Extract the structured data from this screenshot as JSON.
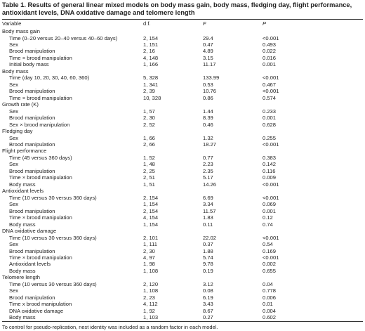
{
  "caption": "Table 1. Results of general linear mixed models on body mass gain, body mass, fledging day, flight performance, antioxidant levels, DNA oxidative damage and telomere length",
  "columns": [
    "Variable",
    "d.f.",
    "F",
    "P"
  ],
  "rows": [
    {
      "type": "section",
      "var": "Body mass gain",
      "df": "",
      "f": "",
      "p": ""
    },
    {
      "type": "item",
      "var": "Time (0–20 versus 20–40 versus 40–60 days)",
      "df": "2, 154",
      "f": "29.4",
      "p": "<0.001"
    },
    {
      "type": "item",
      "var": "Sex",
      "df": "1, 151",
      "f": "0.47",
      "p": "0.493"
    },
    {
      "type": "item",
      "var": "Brood manipulation",
      "df": "2, 16",
      "f": "4.89",
      "p": "0.022"
    },
    {
      "type": "item",
      "var": "Time × brood manipulation",
      "df": "4, 148",
      "f": "3.15",
      "p": "0.016"
    },
    {
      "type": "item",
      "var": "Initial body mass",
      "df": "1, 166",
      "f": "11.17",
      "p": "0.001"
    },
    {
      "type": "section",
      "var": "Body mass",
      "df": "",
      "f": "",
      "p": ""
    },
    {
      "type": "item",
      "var": "Time (day 10, 20, 30, 40, 60, 360)",
      "df": "5, 328",
      "f": "133.99",
      "p": "<0.001"
    },
    {
      "type": "item",
      "var": "Sex",
      "df": "1, 341",
      "f": "0.53",
      "p": "0.467"
    },
    {
      "type": "item",
      "var": "Brood manipulation",
      "df": "2, 39",
      "f": "10.76",
      "p": "<0.001"
    },
    {
      "type": "item",
      "var": "Time × brood manipulation",
      "df": "10, 328",
      "f": "0.86",
      "p": "0.574"
    },
    {
      "type": "section",
      "var": "Growth rate (K)",
      "df": "",
      "f": "",
      "p": ""
    },
    {
      "type": "item",
      "var": "Sex",
      "df": "1, 57",
      "f": "1.44",
      "p": "0.233"
    },
    {
      "type": "item",
      "var": "Brood manipulation",
      "df": "2, 30",
      "f": "8.39",
      "p": "0.001"
    },
    {
      "type": "item",
      "var": "Sex × brood manipulation",
      "df": "2, 52",
      "f": "0.46",
      "p": "0.628"
    },
    {
      "type": "section",
      "var": "Fledging day",
      "df": "",
      "f": "",
      "p": ""
    },
    {
      "type": "item",
      "var": "Sex",
      "df": "1, 66",
      "f": "1.32",
      "p": "0.255"
    },
    {
      "type": "item",
      "var": "Brood manipulation",
      "df": "2, 66",
      "f": "18.27",
      "p": "<0.001"
    },
    {
      "type": "section",
      "var": "Flight performance",
      "df": "",
      "f": "",
      "p": ""
    },
    {
      "type": "item",
      "var": "Time (45 versus 360 days)",
      "df": "1, 52",
      "f": "0.77",
      "p": "0.383"
    },
    {
      "type": "item",
      "var": "Sex",
      "df": "1, 48",
      "f": "2.23",
      "p": "0.142"
    },
    {
      "type": "item",
      "var": "Brood manipulation",
      "df": "2, 25",
      "f": "2.35",
      "p": "0.116"
    },
    {
      "type": "item",
      "var": "Time × brood manipulation",
      "df": "2, 51",
      "f": "5.17",
      "p": "0.009"
    },
    {
      "type": "item",
      "var": "Body mass",
      "df": "1, 51",
      "f": "14.26",
      "p": "<0.001"
    },
    {
      "type": "section",
      "var": "Antioxidant levels",
      "df": "",
      "f": "",
      "p": ""
    },
    {
      "type": "item",
      "var": "Time (10 versus 30 versus 360 days)",
      "df": "2, 154",
      "f": "6.69",
      "p": "<0.001"
    },
    {
      "type": "item",
      "var": "Sex",
      "df": "1, 154",
      "f": "3.34",
      "p": "0.069"
    },
    {
      "type": "item",
      "var": "Brood manipulation",
      "df": "2, 154",
      "f": "11.57",
      "p": "0.001"
    },
    {
      "type": "item",
      "var": "Time × brood manipulation",
      "df": "4, 154",
      "f": "1.83",
      "p": "0.12"
    },
    {
      "type": "item",
      "var": "Body mass",
      "df": "1, 154",
      "f": "0.11",
      "p": "0.74"
    },
    {
      "type": "section",
      "var": "DNA oxidative damage",
      "df": "",
      "f": "",
      "p": ""
    },
    {
      "type": "item",
      "var": "Time (10 versus 30 versus 360 days)",
      "df": "2, 101",
      "f": "22.02",
      "p": "<0.001"
    },
    {
      "type": "item",
      "var": "Sex",
      "df": "1, 111",
      "f": "0.37",
      "p": "0.54"
    },
    {
      "type": "item",
      "var": "Brood manipulation",
      "df": "2, 30",
      "f": "1.88",
      "p": "0.169"
    },
    {
      "type": "item",
      "var": "Time × brood manipulation",
      "df": "4, 97",
      "f": "5.74",
      "p": "<0.001"
    },
    {
      "type": "item",
      "var": "Antioxidant levels",
      "df": "1, 98",
      "f": "9.78",
      "p": "0.002"
    },
    {
      "type": "item",
      "var": "Body mass",
      "df": "1, 108",
      "f": "0.19",
      "p": "0.655"
    },
    {
      "type": "section",
      "var": "Telomere length",
      "df": "",
      "f": "",
      "p": ""
    },
    {
      "type": "item",
      "var": "Time (10 versus 30 versus 360 days)",
      "df": "2, 120",
      "f": "3.12",
      "p": "0.04"
    },
    {
      "type": "item",
      "var": "Sex",
      "df": "1, 108",
      "f": "0.08",
      "p": "0.778"
    },
    {
      "type": "item",
      "var": "Brood manipulation",
      "df": "2, 23",
      "f": "6.19",
      "p": "0.006"
    },
    {
      "type": "item",
      "var": "Time x brood manipulation",
      "df": "4, 112",
      "f": "3.43",
      "p": "0.01"
    },
    {
      "type": "item",
      "var": "DNA oxidative damage",
      "df": "1, 92",
      "f": "8.67",
      "p": "0.004"
    },
    {
      "type": "item",
      "var": "Body mass",
      "df": "1, 103",
      "f": "0.27",
      "p": "0.602"
    }
  ],
  "footnote": "To control for pseudo-replication, nest identity was included as a random factor in each model."
}
